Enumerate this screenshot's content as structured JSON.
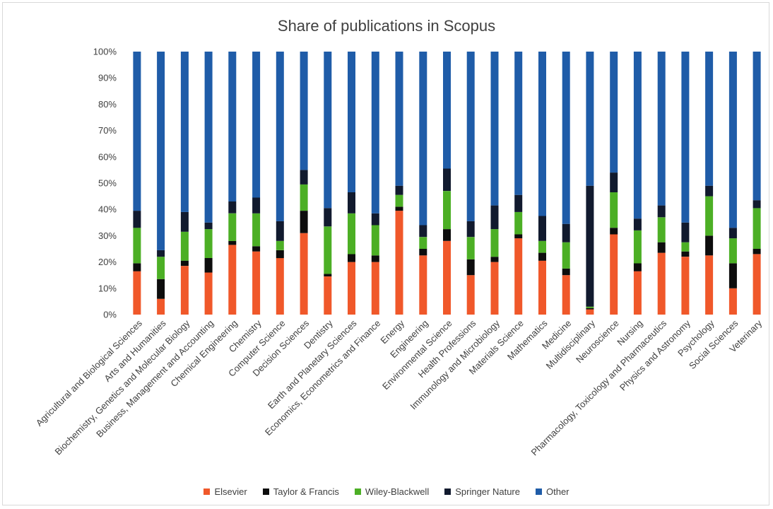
{
  "chart_data": {
    "type": "bar",
    "stacked": true,
    "title": "Share of publications in Scopus",
    "xlabel": "",
    "ylabel": "",
    "ylim": [
      0,
      100
    ],
    "yticks": [
      "0%",
      "10%",
      "20%",
      "30%",
      "40%",
      "50%",
      "60%",
      "70%",
      "80%",
      "90%",
      "100%"
    ],
    "legend_position": "bottom",
    "categories": [
      "Agricultural and Biological Sciences",
      "Arts and Humanities",
      "Biochemistry, Genetics and Molecular Biology",
      "Business, Management and Accounting",
      "Chemical Engineering",
      "Chemistry",
      "Computer Science",
      "Decision Sciences",
      "Dentistry",
      "Earth and Planetary Sciences",
      "Economics, Econometrics and Finance",
      "Energy",
      "Engineering",
      "Environmental Science",
      "Health Professions",
      "Immunology and Microbiology",
      "Materials Science",
      "Mathematics",
      "Medicine",
      "Multidisciplinary",
      "Neuroscience",
      "Nursing",
      "Pharmacology, Toxicology and Pharmaceutics",
      "Physics and Astronomy",
      "Psychology",
      "Social Sciences",
      "Veterinary"
    ],
    "series": [
      {
        "name": "Elsevier",
        "color": "#f0582a",
        "values": [
          16.5,
          6,
          18.5,
          16,
          26.5,
          24,
          21.5,
          31,
          14.5,
          20,
          20,
          39.5,
          22.5,
          28,
          15,
          20,
          29,
          20.5,
          15,
          2,
          30.5,
          16.5,
          23.5,
          22,
          22.5,
          10,
          23
        ]
      },
      {
        "name": "Taylor & Francis",
        "color": "#0d0d0d",
        "values": [
          3,
          7.5,
          2,
          5.5,
          1.5,
          2,
          3,
          8.5,
          1,
          3,
          2.5,
          1.5,
          2.5,
          4.5,
          6,
          2,
          1.5,
          3,
          2.5,
          0.5,
          2.5,
          3,
          4,
          2,
          7.5,
          9.5,
          2
        ]
      },
      {
        "name": "Wiley-Blackwell",
        "color": "#4caf25",
        "values": [
          13.5,
          8.5,
          11,
          11,
          10.5,
          12.5,
          3.5,
          10,
          18,
          15.5,
          11.5,
          4.5,
          4.5,
          14.5,
          8.5,
          10.5,
          8.5,
          4.5,
          10,
          0.5,
          13.5,
          12.5,
          9.5,
          3.5,
          15,
          9.5,
          15.5
        ]
      },
      {
        "name": "Springer Nature",
        "color": "#111a2e",
        "values": [
          6.5,
          2.5,
          7.5,
          2.5,
          4.5,
          6,
          7.5,
          5.5,
          7,
          8,
          4.5,
          3.5,
          4.5,
          8.5,
          6,
          9,
          6.5,
          9.5,
          7,
          46,
          7.5,
          4.5,
          4.5,
          7.5,
          4,
          4,
          3
        ]
      },
      {
        "name": "Other",
        "color": "#1f5ca8",
        "values": [
          60.5,
          75.5,
          61,
          65,
          57,
          55.5,
          64.5,
          45,
          59.5,
          53.5,
          61.5,
          51,
          66,
          44.5,
          64.5,
          58.5,
          54.5,
          62.5,
          65.5,
          51,
          46,
          63.5,
          58.5,
          65,
          51,
          67,
          56.5
        ]
      }
    ]
  }
}
